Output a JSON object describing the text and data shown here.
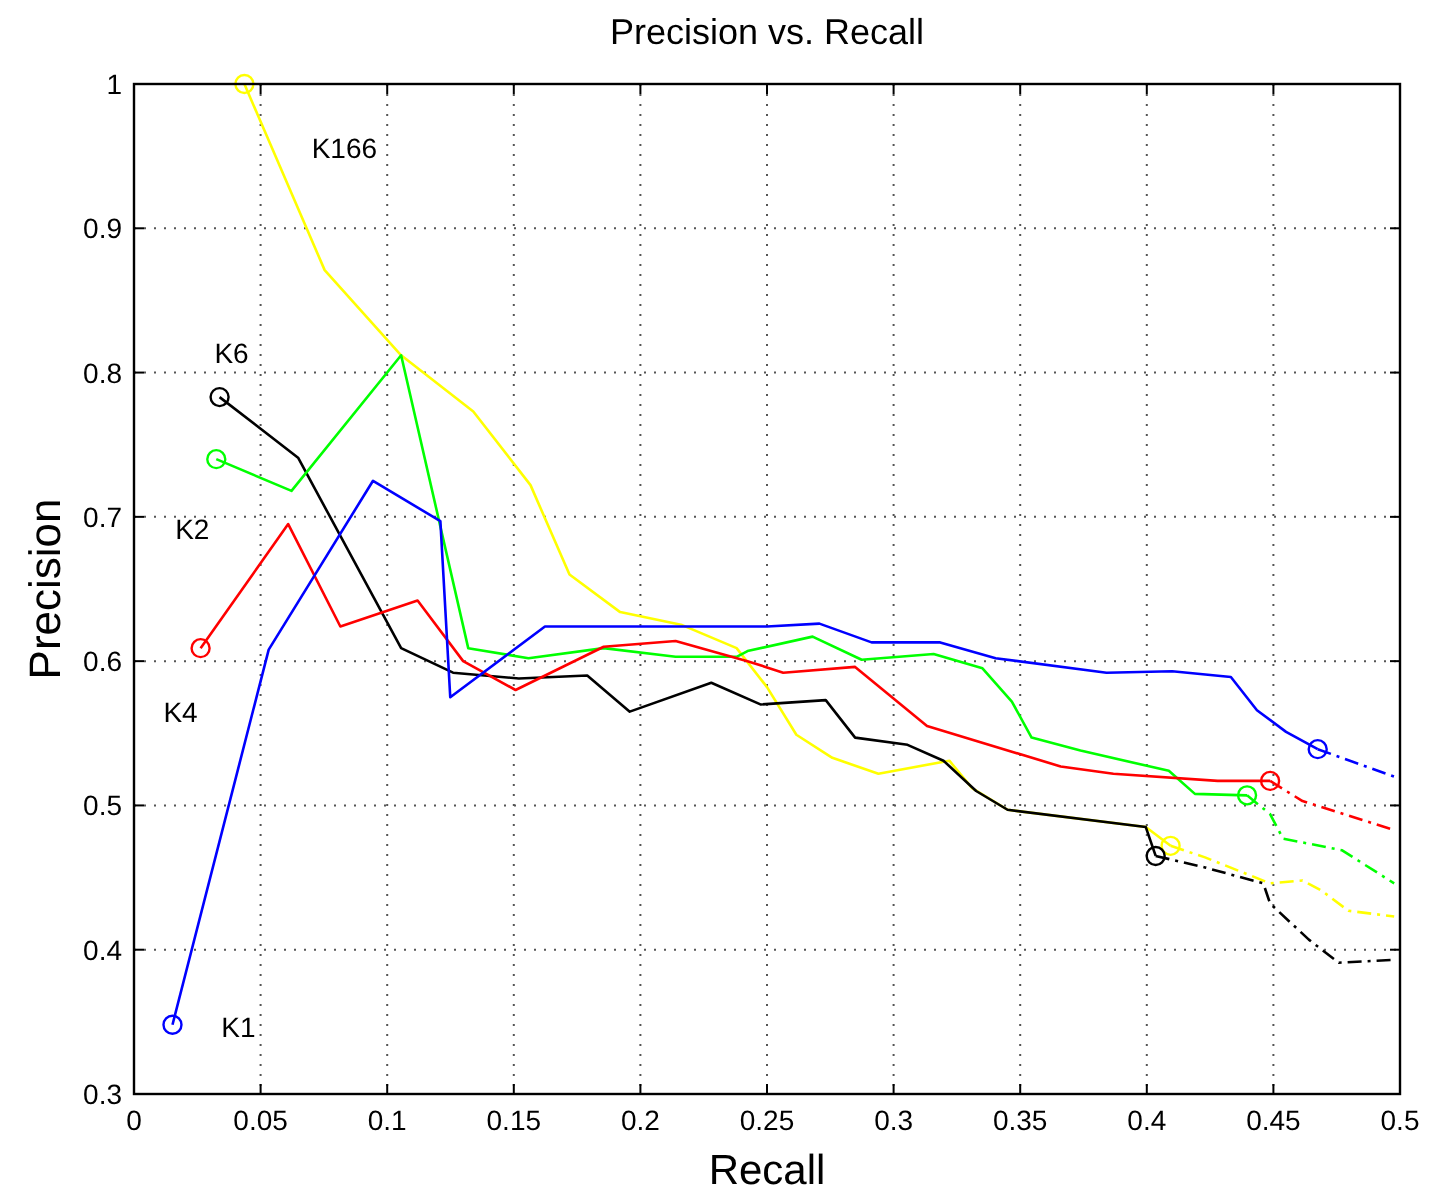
{
  "chart_data": {
    "type": "line",
    "title": "Precision vs. Recall",
    "xlabel": "Recall",
    "ylabel": "Precision",
    "xlim": [
      0,
      0.5
    ],
    "ylim": [
      0.3,
      1
    ],
    "xticks": [
      {
        "value": 0,
        "label": "0"
      },
      {
        "value": 0.05,
        "label": "0.05"
      },
      {
        "value": 0.1,
        "label": "0.1"
      },
      {
        "value": 0.15,
        "label": "0.15"
      },
      {
        "value": 0.2,
        "label": "0.2"
      },
      {
        "value": 0.25,
        "label": "0.25"
      },
      {
        "value": 0.3,
        "label": "0.3"
      },
      {
        "value": 0.35,
        "label": "0.35"
      },
      {
        "value": 0.4,
        "label": "0.4"
      },
      {
        "value": 0.45,
        "label": "0.45"
      },
      {
        "value": 0.5,
        "label": "0.5"
      }
    ],
    "yticks": [
      0.3,
      0.4,
      0.5,
      0.6,
      0.7,
      0.8,
      0.9,
      1
    ],
    "grid": true,
    "series": [
      {
        "name": "K166",
        "color": "#ffff00",
        "line_style": "solid",
        "x": [
          0.0436,
          0.0753,
          0.1055,
          0.134,
          0.1566,
          0.172,
          0.192,
          0.2165,
          0.238,
          0.25,
          0.2616,
          0.2758,
          0.294,
          0.322,
          0.331,
          0.345,
          0.3996,
          0.4094
        ],
        "values": [
          1.0,
          0.871,
          0.812,
          0.773,
          0.722,
          0.66,
          0.634,
          0.625,
          0.609,
          0.582,
          0.549,
          0.533,
          0.522,
          0.531,
          0.512,
          0.497,
          0.485,
          0.472
        ]
      },
      {
        "color": "#ffff00",
        "line_style": "dashed",
        "x": [
          0.4094,
          0.423,
          0.4487,
          0.4615,
          0.469,
          0.4796,
          0.4977
        ],
        "values": [
          0.472,
          0.464,
          0.446,
          0.448,
          0.441,
          0.427,
          0.423
        ]
      },
      {
        "type": "scatter",
        "color": "#ffff00",
        "marker": "circle",
        "x": [
          0.0436,
          0.4094
        ],
        "values": [
          1.0,
          0.472
        ]
      },
      {
        "name": "K6",
        "color": "#000000",
        "line_style": "solid",
        "x": [
          0.0338,
          0.0648,
          0.1055,
          0.126,
          0.152,
          0.179,
          0.1958,
          0.228,
          0.2474,
          0.2732,
          0.2848,
          0.3055,
          0.3197,
          0.3326,
          0.345,
          0.3996,
          0.4035
        ],
        "values": [
          0.783,
          0.741,
          0.609,
          0.592,
          0.588,
          0.59,
          0.565,
          0.585,
          0.57,
          0.573,
          0.547,
          0.542,
          0.531,
          0.51,
          0.497,
          0.485,
          0.465
        ]
      },
      {
        "color": "#000000",
        "line_style": "dashed",
        "x": [
          0.4035,
          0.423,
          0.446,
          0.4487,
          0.464,
          0.4758,
          0.4977
        ],
        "values": [
          0.465,
          0.457,
          0.446,
          0.432,
          0.407,
          0.391,
          0.393
        ]
      },
      {
        "type": "scatter",
        "color": "#000000",
        "marker": "circle",
        "x": [
          0.0338,
          0.4035
        ],
        "values": [
          0.783,
          0.465
        ]
      },
      {
        "name": "K2",
        "color": "#00ff00",
        "line_style": "solid",
        "x": [
          0.0325,
          0.0622,
          0.1055,
          0.132,
          0.1558,
          0.1855,
          0.2139,
          0.238,
          0.2423,
          0.268,
          0.2874,
          0.3158,
          0.3351,
          0.3467,
          0.3545,
          0.3738,
          0.4087,
          0.419,
          0.4396
        ],
        "values": [
          0.74,
          0.718,
          0.812,
          0.609,
          0.602,
          0.609,
          0.603,
          0.603,
          0.607,
          0.617,
          0.601,
          0.605,
          0.595,
          0.572,
          0.547,
          0.538,
          0.524,
          0.508,
          0.507
        ]
      },
      {
        "color": "#00ff00",
        "line_style": "dashed",
        "x": [
          0.4396,
          0.4487,
          0.4538,
          0.477,
          0.4977
        ],
        "values": [
          0.507,
          0.494,
          0.477,
          0.469,
          0.446
        ]
      },
      {
        "type": "scatter",
        "color": "#00ff00",
        "marker": "circle",
        "x": [
          0.0325,
          0.4396
        ],
        "values": [
          0.74,
          0.507
        ]
      },
      {
        "name": "K4",
        "color": "#ff0000",
        "line_style": "solid",
        "x": [
          0.0263,
          0.0609,
          0.0815,
          0.112,
          0.13,
          0.1507,
          0.1855,
          0.2139,
          0.2423,
          0.2564,
          0.2848,
          0.3132,
          0.366,
          0.3868,
          0.428,
          0.4487
        ],
        "values": [
          0.609,
          0.695,
          0.624,
          0.642,
          0.6,
          0.58,
          0.61,
          0.614,
          0.6,
          0.592,
          0.596,
          0.555,
          0.527,
          0.522,
          0.517,
          0.517
        ]
      },
      {
        "color": "#ff0000",
        "line_style": "dashed",
        "x": [
          0.4487,
          0.4615,
          0.4977
        ],
        "values": [
          0.517,
          0.503,
          0.483
        ]
      },
      {
        "type": "scatter",
        "color": "#ff0000",
        "marker": "circle",
        "x": [
          0.0263,
          0.4487
        ],
        "values": [
          0.609,
          0.517
        ]
      },
      {
        "name": "K1",
        "color": "#0000ff",
        "line_style": "solid",
        "x": [
          0.0152,
          0.0532,
          0.0944,
          0.121,
          0.1249,
          0.1623,
          0.25,
          0.2707,
          0.2913,
          0.3184,
          0.3403,
          0.3841,
          0.41,
          0.4332,
          0.4435,
          0.455,
          0.4675
        ],
        "values": [
          0.348,
          0.608,
          0.725,
          0.697,
          0.575,
          0.624,
          0.624,
          0.626,
          0.613,
          0.613,
          0.602,
          0.592,
          0.593,
          0.589,
          0.566,
          0.551,
          0.539
        ]
      },
      {
        "color": "#0000ff",
        "line_style": "dashed",
        "x": [
          0.4675,
          0.4977
        ],
        "values": [
          0.539,
          0.52
        ]
      },
      {
        "type": "scatter",
        "color": "#0000ff",
        "marker": "circle",
        "x": [
          0.0152,
          0.4675
        ],
        "values": [
          0.348,
          0.539
        ]
      }
    ]
  }
}
